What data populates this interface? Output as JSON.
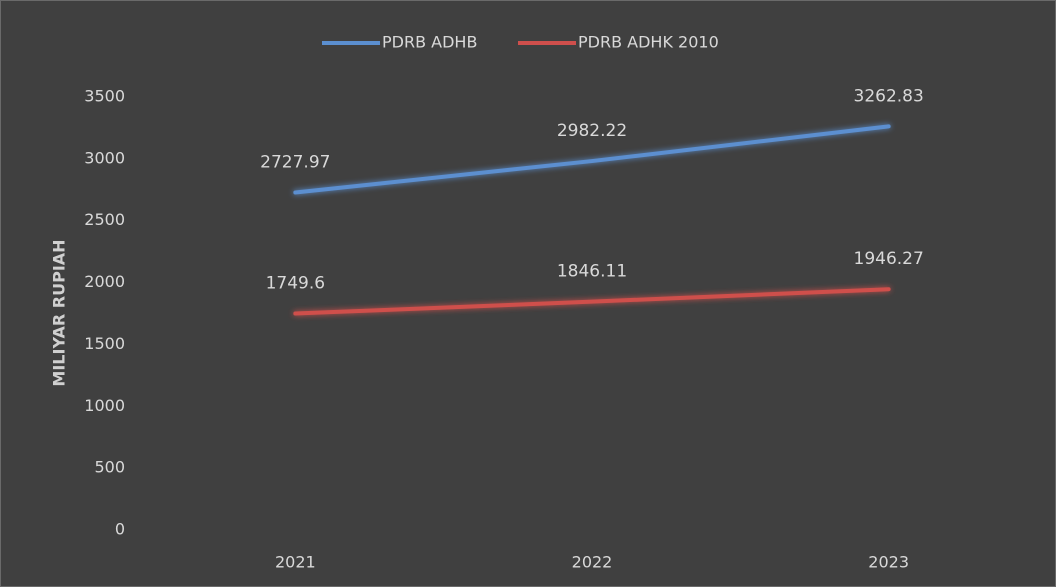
{
  "chart_data": {
    "type": "line",
    "categories": [
      "2021",
      "2022",
      "2023"
    ],
    "series": [
      {
        "name": "PDRB ADHB",
        "color": "#5b8fd0",
        "values": [
          2727.97,
          2982.22,
          3262.83
        ]
      },
      {
        "name": "PDRB ADHK 2010",
        "color": "#cf4f4c",
        "values": [
          1749.6,
          1846.11,
          1946.27
        ]
      }
    ],
    "y_label": "MILIYAR RUPIAH",
    "ylim": [
      0,
      3500
    ],
    "yticks": [
      0,
      500,
      1000,
      1500,
      2000,
      2500,
      3000,
      3500
    ],
    "grid": false,
    "legend": "top"
  }
}
